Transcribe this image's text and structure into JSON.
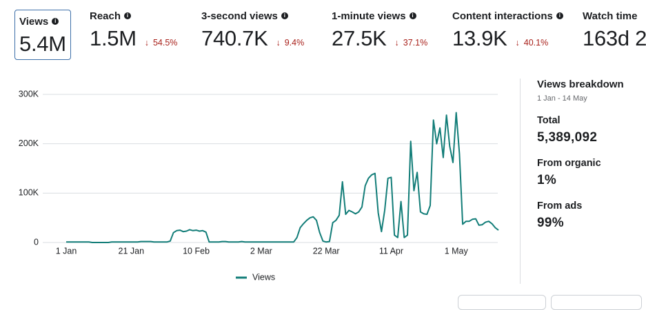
{
  "metrics": [
    {
      "label": "Views",
      "value": "5.4M"
    },
    {
      "label": "Reach",
      "value": "1.5M",
      "change": "54.5%"
    },
    {
      "label": "3-second views",
      "value": "740.7K",
      "change": "9.4%"
    },
    {
      "label": "1-minute views",
      "value": "27.5K",
      "change": "37.1%"
    },
    {
      "label": "Content interactions",
      "value": "13.9K",
      "change": "40.1%"
    },
    {
      "label": "Watch time",
      "value": "163d 2"
    }
  ],
  "breakdown": {
    "title": "Views breakdown",
    "subtitle": "1 Jan - 14 May",
    "items": [
      {
        "label": "Total",
        "value": "5,389,092"
      },
      {
        "label": "From organic",
        "value": "1%"
      },
      {
        "label": "From ads",
        "value": "99%"
      }
    ]
  },
  "chart_data": {
    "type": "line",
    "categories": [
      "1 Jan",
      null,
      null,
      null,
      null,
      null,
      null,
      null,
      null,
      null,
      null,
      null,
      null,
      null,
      null,
      null,
      null,
      null,
      null,
      null,
      "21 Jan",
      null,
      null,
      null,
      null,
      null,
      null,
      null,
      null,
      null,
      null,
      null,
      null,
      null,
      null,
      null,
      null,
      null,
      null,
      null,
      "10 Feb",
      null,
      null,
      null,
      null,
      null,
      null,
      null,
      null,
      null,
      null,
      null,
      null,
      null,
      null,
      null,
      null,
      null,
      null,
      null,
      "2 Mar",
      null,
      null,
      null,
      null,
      null,
      null,
      null,
      null,
      null,
      null,
      null,
      null,
      null,
      null,
      null,
      null,
      null,
      null,
      null,
      "22 Mar",
      null,
      null,
      null,
      null,
      null,
      null,
      null,
      null,
      null,
      null,
      null,
      null,
      null,
      null,
      null,
      null,
      null,
      null,
      null,
      "11 Apr",
      null,
      null,
      null,
      null,
      null,
      null,
      null,
      null,
      null,
      null,
      null,
      null,
      null,
      null,
      null,
      null,
      null,
      null,
      null,
      "1 May",
      null,
      null,
      null,
      null,
      null,
      null,
      null,
      null,
      null,
      null,
      null,
      null,
      null
    ],
    "series": [
      {
        "name": "Views",
        "color": "#127d78",
        "values": [
          1000,
          1000,
          1000,
          1000,
          1000,
          1000,
          1000,
          1000,
          0,
          0,
          0,
          0,
          0,
          0,
          1000,
          1000,
          1000,
          1000,
          1000,
          1000,
          1000,
          1000,
          1000,
          2000,
          2000,
          2000,
          2000,
          1000,
          1000,
          1000,
          1000,
          1000,
          3000,
          20000,
          24000,
          25000,
          22000,
          23000,
          26000,
          24000,
          25000,
          23000,
          24000,
          21000,
          1000,
          1000,
          1000,
          1000,
          2000,
          2000,
          1000,
          1000,
          1000,
          1000,
          2000,
          1000,
          1000,
          1000,
          1000,
          1000,
          1000,
          1000,
          1000,
          1000,
          1000,
          1000,
          1000,
          1000,
          1000,
          1000,
          1000,
          10000,
          30000,
          38000,
          45000,
          50000,
          52000,
          45000,
          20000,
          3000,
          1000,
          2000,
          40000,
          45000,
          55000,
          123000,
          57000,
          65000,
          62000,
          58000,
          62000,
          72000,
          115000,
          130000,
          137000,
          140000,
          60000,
          22000,
          65000,
          130000,
          132000,
          15000,
          10000,
          83000,
          10000,
          15000,
          205000,
          105000,
          142000,
          62000,
          58000,
          57000,
          75000,
          248000,
          200000,
          232000,
          172000,
          258000,
          195000,
          162000,
          263000,
          180000,
          37000,
          43000,
          43000,
          47000,
          48000,
          35000,
          36000,
          41000,
          43000,
          38000,
          30000,
          25000
        ]
      }
    ],
    "ylim": [
      0,
      300000
    ],
    "yticks": [
      0,
      {
        "value": 100000,
        "label": "100K"
      },
      {
        "value": 200000,
        "label": "200K"
      },
      {
        "value": 300000,
        "label": "300K"
      }
    ],
    "grid": true,
    "legend": "bottom"
  }
}
